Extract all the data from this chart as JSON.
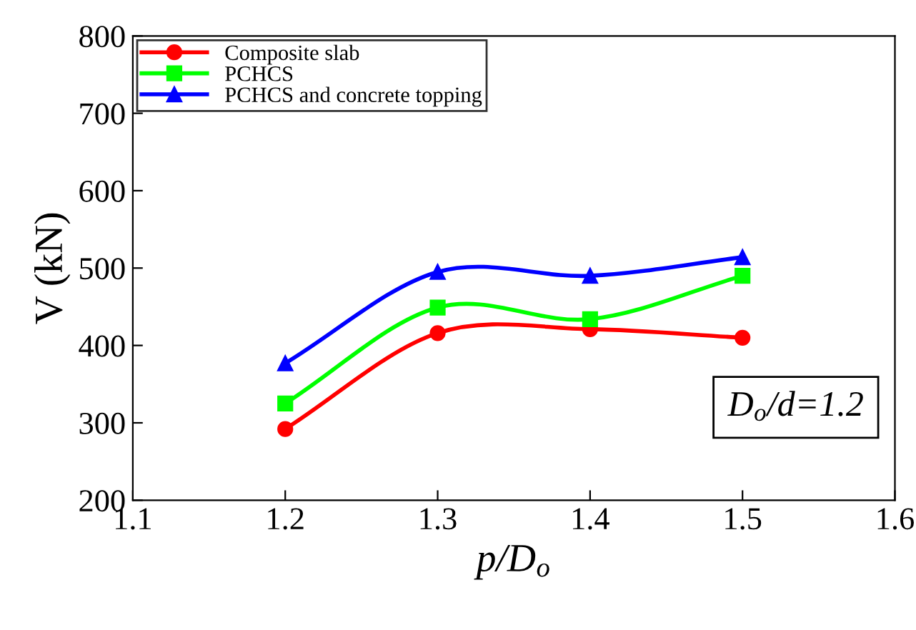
{
  "chart_data": {
    "type": "line",
    "xlabel": "p/D$_{o}$",
    "ylabel": "V (kN)",
    "x": [
      1.2,
      1.3,
      1.4,
      1.5
    ],
    "series": [
      {
        "name": "Composite slab",
        "color": "#ff0000",
        "marker": "circle",
        "values": [
          292,
          416,
          421,
          410
        ]
      },
      {
        "name": "PCHCS",
        "color": "#00ff00",
        "marker": "square",
        "values": [
          325,
          449,
          434,
          490
        ]
      },
      {
        "name": "PCHCS and concrete topping",
        "color": "#0000ff",
        "marker": "triangle",
        "values": [
          377,
          495,
          490,
          514
        ]
      }
    ],
    "xlim": [
      1.1,
      1.6
    ],
    "xticks": [
      1.1,
      1.2,
      1.3,
      1.4,
      1.5,
      1.6
    ],
    "ylim": [
      200,
      800
    ],
    "yticks": [
      200,
      300,
      400,
      500,
      600,
      700,
      800
    ],
    "grid": false,
    "legend": "top left",
    "line_style": "solid",
    "annotations": [
      "D$_{o}$/d=1.2"
    ]
  }
}
